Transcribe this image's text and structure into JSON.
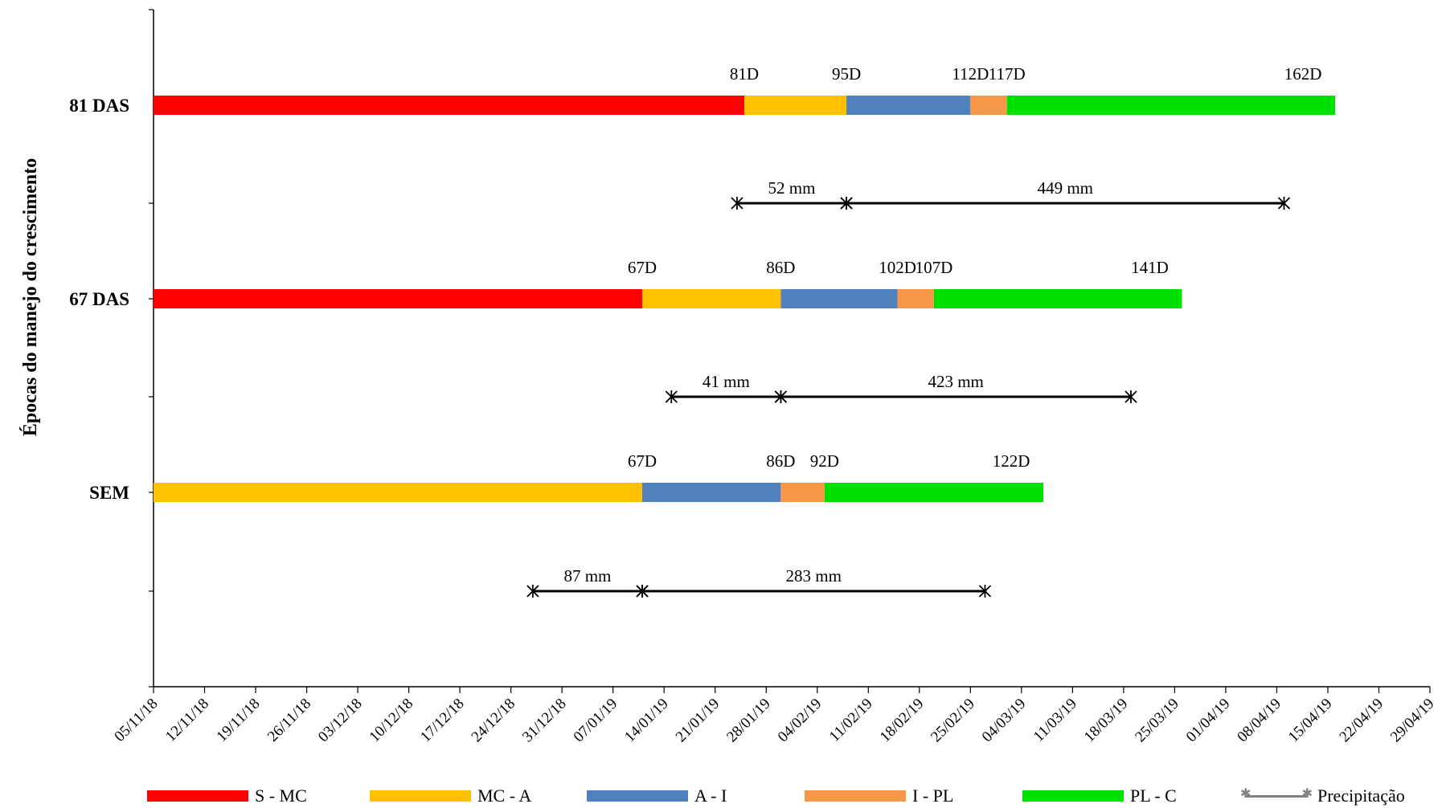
{
  "chart_data": {
    "type": "gantt",
    "ylabel": "Épocas do manejo do crescimento",
    "x_ticks": [
      "05/11/18",
      "12/11/18",
      "19/11/18",
      "26/11/18",
      "03/12/18",
      "10/12/18",
      "17/12/18",
      "24/12/18",
      "31/12/18",
      "07/01/19",
      "14/01/19",
      "21/01/19",
      "28/01/19",
      "04/02/19",
      "11/02/19",
      "18/02/19",
      "25/02/19",
      "04/03/19",
      "11/03/19",
      "18/03/19",
      "25/03/19",
      "01/04/19",
      "08/04/19",
      "15/04/19",
      "22/04/19",
      "29/04/19"
    ],
    "x_range_days": [
      0,
      175
    ],
    "rows": [
      {
        "label": "81 DAS",
        "phases": [
          {
            "phase": "S - MC",
            "start_day": 0,
            "end_day": 81,
            "end_label": "81D"
          },
          {
            "phase": "MC - A",
            "start_day": 81,
            "end_day": 95,
            "end_label": "95D"
          },
          {
            "phase": "A - I",
            "start_day": 95,
            "end_day": 112,
            "end_label": "112D"
          },
          {
            "phase": "I - PL",
            "start_day": 112,
            "end_day": 117,
            "end_label": "117D"
          },
          {
            "phase": "PL - C",
            "start_day": 117,
            "end_day": 162,
            "end_label": "162D"
          }
        ],
        "start_marker_label": "81D",
        "precipitation": [
          {
            "start_day": 80,
            "end_day": 95,
            "label": "52 mm"
          },
          {
            "start_day": 95,
            "end_day": 155,
            "label": "449 mm"
          }
        ]
      },
      {
        "label": "67 DAS",
        "phases": [
          {
            "phase": "S - MC",
            "start_day": 0,
            "end_day": 67,
            "end_label": "67D"
          },
          {
            "phase": "MC - A",
            "start_day": 67,
            "end_day": 86,
            "end_label": "86D"
          },
          {
            "phase": "A - I",
            "start_day": 86,
            "end_day": 102,
            "end_label": "102D"
          },
          {
            "phase": "I - PL",
            "start_day": 102,
            "end_day": 107,
            "end_label": "107D"
          },
          {
            "phase": "PL - C",
            "start_day": 107,
            "end_day": 141,
            "end_label": "141D"
          }
        ],
        "precipitation": [
          {
            "start_day": 71,
            "end_day": 86,
            "label": "41 mm"
          },
          {
            "start_day": 86,
            "end_day": 134,
            "label": "423 mm"
          }
        ]
      },
      {
        "label": "SEM",
        "phases": [
          {
            "phase": "MC - A",
            "start_day": 0,
            "end_day": 67,
            "end_label": "67D"
          },
          {
            "phase": "A - I",
            "start_day": 67,
            "end_day": 86,
            "end_label": "86D"
          },
          {
            "phase": "I - PL",
            "start_day": 86,
            "end_day": 92,
            "end_label": "92D"
          },
          {
            "phase": "PL - C",
            "start_day": 92,
            "end_day": 122,
            "end_label": "122D"
          }
        ],
        "precipitation": [
          {
            "start_day": 52,
            "end_day": 67,
            "label": "87 mm"
          },
          {
            "start_day": 67,
            "end_day": 114,
            "label": "283 mm"
          }
        ]
      }
    ],
    "legend": [
      {
        "label": "S - MC",
        "color": "#FF0000"
      },
      {
        "label": "MC - A",
        "color": "#FFC000"
      },
      {
        "label": "A - I",
        "color": "#4F81BD"
      },
      {
        "label": "I - PL",
        "color": "#F79646"
      },
      {
        "label": "PL - C",
        "color": "#00E000"
      },
      {
        "label": "Precipitação",
        "color": "#808080",
        "marker": "asterisk-line"
      }
    ],
    "legend_position": "bottom",
    "grid": false
  }
}
